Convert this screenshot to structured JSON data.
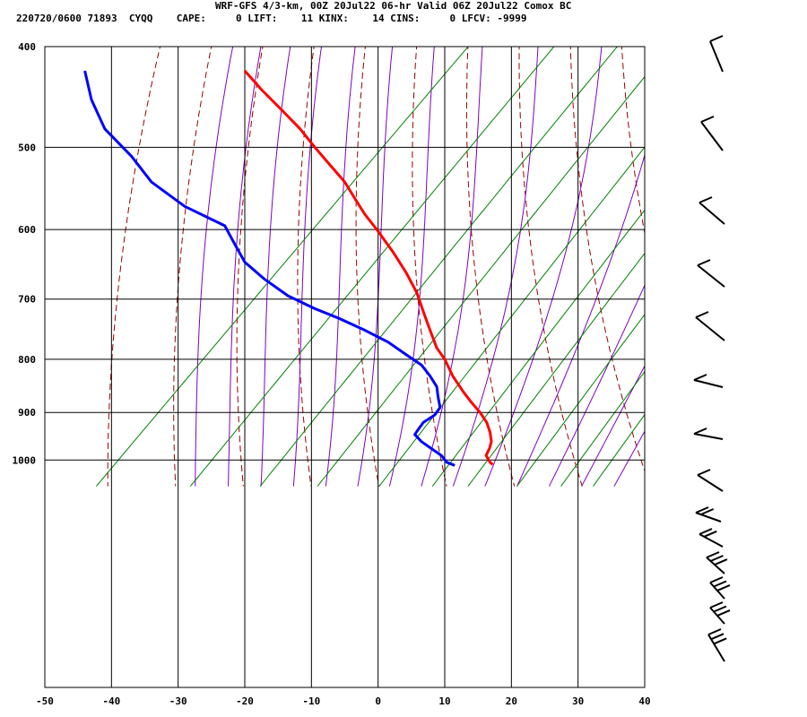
{
  "header": {
    "line1": "WRF-GFS 4/3-km, 00Z 20Jul22 06-hr Valid 06Z 20Jul22 Comox BC",
    "line2": "220720/0600 71893  CYQQ    CAPE:     0 LIFT:    11 KINX:    14 CINS:     0 LFCV: -9999"
  },
  "colors": {
    "temperature": "#ff0000",
    "dewpoint": "#0000ff",
    "dry_adiabat": "#990000",
    "moist_adiabat": "#8000c0",
    "mixing_ratio": "#008000",
    "grid": "#000000"
  },
  "chart_data": {
    "type": "line",
    "title": "",
    "xlabel": "",
    "ylabel": "",
    "x_ticks": [
      -50,
      -40,
      -30,
      -20,
      -10,
      0,
      10,
      20,
      30,
      40
    ],
    "x_tick_labels": [
      "-50",
      "-40",
      "-30",
      "-20",
      "-10",
      "0",
      "10",
      "20",
      "30",
      "40"
    ],
    "y_ticks": [
      400,
      500,
      600,
      700,
      800,
      900,
      1000
    ],
    "y_tick_labels": [
      "400",
      "500",
      "600",
      "700",
      "800",
      "900",
      "1000"
    ],
    "xlim": [
      -50,
      40
    ],
    "ylim": [
      1040,
      400
    ],
    "y_scale": "log",
    "grid": true,
    "series": [
      {
        "key": "temperature",
        "pressure": [
          422,
          440,
          460,
          480,
          500,
          520,
          540,
          560,
          580,
          600,
          630,
          660,
          690,
          720,
          750,
          780,
          800,
          830,
          860,
          880,
          900,
          920,
          940,
          960,
          975,
          990,
          1005,
          1010
        ],
        "values": [
          -20,
          -17.5,
          -14.5,
          -11.7,
          -9.5,
          -7.2,
          -5,
          -3.5,
          -2,
          -0.2,
          2.2,
          4.2,
          5.8,
          6.8,
          7.8,
          8.8,
          10,
          11.2,
          12.8,
          14,
          15.3,
          16.3,
          16.8,
          17,
          16.7,
          16.2,
          16.8,
          17.2
        ]
      },
      {
        "key": "dewpoint",
        "pressure": [
          422,
          450,
          480,
          510,
          540,
          570,
          595,
          620,
          645,
          670,
          695,
          715,
          730,
          750,
          770,
          790,
          810,
          830,
          850,
          870,
          890,
          905,
          920,
          935,
          945,
          960,
          975,
          990,
          1005,
          1012
        ],
        "values": [
          -44,
          -43,
          -41,
          -37,
          -34,
          -29,
          -23,
          -21.5,
          -20,
          -17,
          -13.5,
          -9.5,
          -6,
          -2,
          1.5,
          4,
          6.5,
          7.8,
          8.8,
          9,
          9.3,
          8.5,
          6.8,
          6,
          5.5,
          6.5,
          8,
          9.5,
          10.3,
          11.5
        ]
      }
    ],
    "wind_barbs": true
  }
}
